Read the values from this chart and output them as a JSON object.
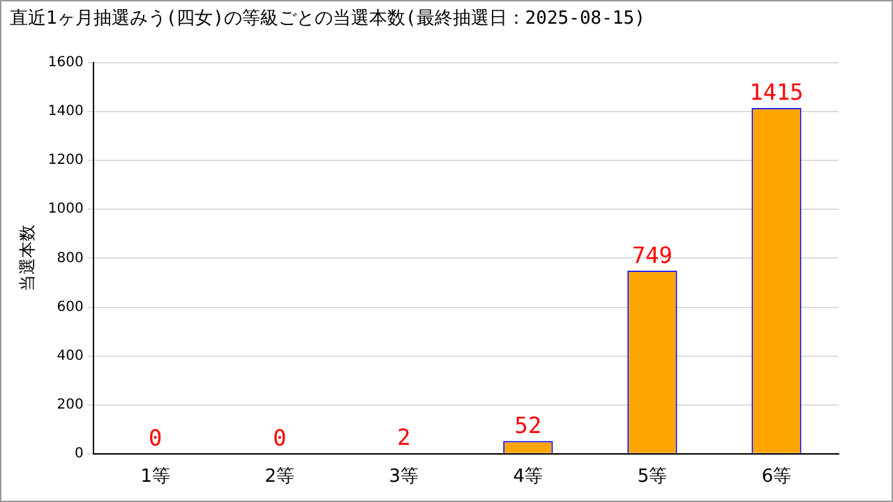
{
  "chart_data": {
    "type": "bar",
    "title": "直近1ヶ月抽選みう(四女)の等級ごとの当選本数(最終抽選日：2025-08-15)",
    "ylabel": "当選本数",
    "categories": [
      "1等",
      "2等",
      "3等",
      "4等",
      "5等",
      "6等"
    ],
    "values": [
      0,
      0,
      2,
      52,
      749,
      1415
    ],
    "color": "#ffa500",
    "ylim": [
      0,
      1600
    ],
    "yticks": [
      0,
      200,
      400,
      600,
      800,
      1000,
      1200,
      1400,
      1600
    ],
    "grid": "y",
    "legend": false,
    "data_labels": true
  }
}
